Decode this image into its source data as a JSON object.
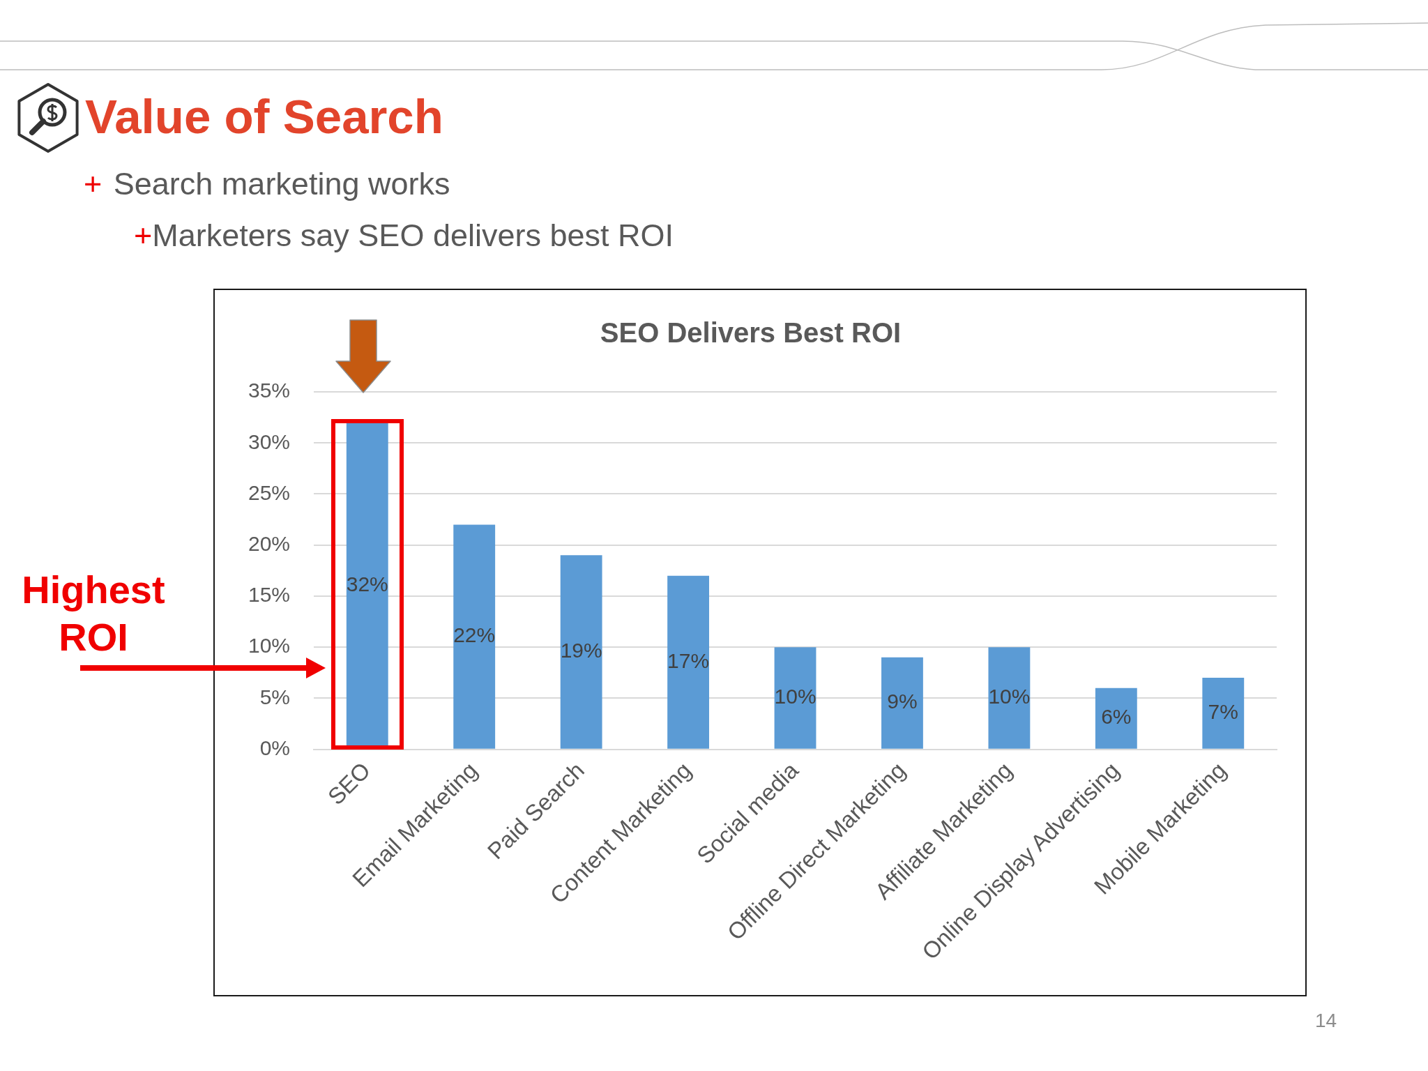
{
  "chart_data": {
    "type": "bar",
    "title": "SEO Delivers Best ROI",
    "categories": [
      "SEO",
      "Email Marketing",
      "Paid Search",
      "Content Marketing",
      "Social media",
      "Offline Direct Marketing",
      "Affiliate Marketing",
      "Online Display Advertising",
      "Mobile Marketing"
    ],
    "values": [
      32,
      22,
      19,
      17,
      10,
      9,
      10,
      6,
      7
    ],
    "color": "#5b9bd5",
    "value_labels": [
      "32%",
      "22%",
      "19%",
      "17%",
      "10%",
      "9%",
      "10%",
      "6%",
      "7%"
    ],
    "ylim": [
      0,
      35
    ],
    "yticks": [
      {
        "value": 0,
        "label": "0%"
      },
      {
        "value": 5,
        "label": "5%"
      },
      {
        "value": 10,
        "label": "10%"
      },
      {
        "value": 15,
        "label": "15%"
      },
      {
        "value": 20,
        "label": "20%"
      },
      {
        "value": 25,
        "label": "25%"
      },
      {
        "value": 30,
        "label": "30%"
      },
      {
        "value": 35,
        "label": "35%"
      }
    ],
    "grid": "y",
    "annotations": [
      "Value of Search",
      "+ Search marketing works",
      "+Marketers say SEO delivers best ROI",
      "Highest ROI",
      "14"
    ]
  }
}
